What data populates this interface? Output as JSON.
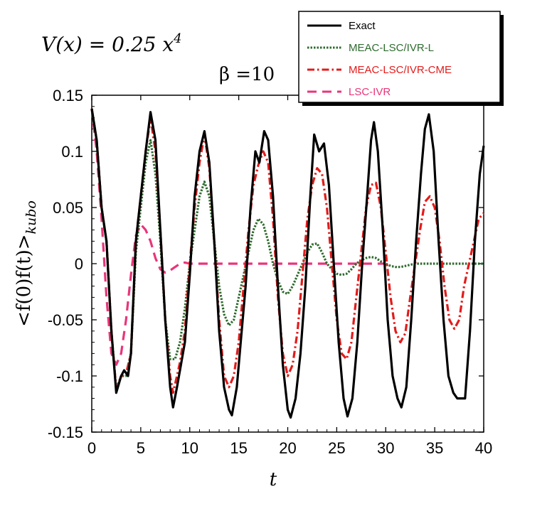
{
  "chart_data": {
    "type": "line",
    "potential_label": "V(x) = 0.25 x",
    "potential_exponent": "4",
    "beta_label": "β =10",
    "xlabel": "t",
    "ylabel_main": "<f(0)f(t)>",
    "ylabel_sub": "kubo",
    "xlim": [
      0,
      40
    ],
    "ylim": [
      -0.15,
      0.15
    ],
    "xticks": [
      "0",
      "5",
      "10",
      "15",
      "20",
      "25",
      "30",
      "35",
      "40"
    ],
    "yticks": [
      "0.15",
      "0.1",
      "0.05",
      "0",
      "-0.05",
      "-0.1",
      "-0.15"
    ],
    "legend_position": "top-right",
    "series": [
      {
        "name": "Exact",
        "color": "#000000",
        "style": "solid",
        "points": [
          [
            0,
            0.138
          ],
          [
            0.5,
            0.11
          ],
          [
            1,
            0.05
          ],
          [
            1.5,
            0.02
          ],
          [
            2,
            -0.06
          ],
          [
            2.5,
            -0.115
          ],
          [
            3,
            -0.1
          ],
          [
            3.3,
            -0.095
          ],
          [
            3.7,
            -0.1
          ],
          [
            4,
            -0.08
          ],
          [
            4.5,
            0.02
          ],
          [
            5,
            0.06
          ],
          [
            5.5,
            0.1
          ],
          [
            6,
            0.135
          ],
          [
            6.5,
            0.11
          ],
          [
            7,
            0.03
          ],
          [
            7.5,
            -0.05
          ],
          [
            8,
            -0.11
          ],
          [
            8.3,
            -0.128
          ],
          [
            8.7,
            -0.11
          ],
          [
            9,
            -0.095
          ],
          [
            9.5,
            -0.07
          ],
          [
            10,
            -0.01
          ],
          [
            10.5,
            0.06
          ],
          [
            11,
            0.1
          ],
          [
            11.5,
            0.118
          ],
          [
            12,
            0.09
          ],
          [
            12.5,
            0.02
          ],
          [
            13,
            -0.06
          ],
          [
            13.5,
            -0.11
          ],
          [
            14,
            -0.13
          ],
          [
            14.3,
            -0.135
          ],
          [
            14.8,
            -0.11
          ],
          [
            15.2,
            -0.07
          ],
          [
            15.7,
            -0.02
          ],
          [
            16.2,
            0.05
          ],
          [
            16.7,
            0.1
          ],
          [
            17.1,
            0.09
          ],
          [
            17.6,
            0.118
          ],
          [
            18,
            0.11
          ],
          [
            18.5,
            0.06
          ],
          [
            19,
            -0.02
          ],
          [
            19.5,
            -0.09
          ],
          [
            20,
            -0.13
          ],
          [
            20.3,
            -0.137
          ],
          [
            20.8,
            -0.12
          ],
          [
            21.3,
            -0.08
          ],
          [
            21.8,
            -0.02
          ],
          [
            22.3,
            0.06
          ],
          [
            22.7,
            0.115
          ],
          [
            23.2,
            0.1
          ],
          [
            23.7,
            0.107
          ],
          [
            24.2,
            0.07
          ],
          [
            24.7,
            0.0
          ],
          [
            25.2,
            -0.07
          ],
          [
            25.7,
            -0.12
          ],
          [
            26.1,
            -0.136
          ],
          [
            26.6,
            -0.12
          ],
          [
            27.1,
            -0.07
          ],
          [
            27.6,
            0.0
          ],
          [
            28.1,
            0.06
          ],
          [
            28.5,
            0.11
          ],
          [
            28.8,
            0.126
          ],
          [
            29.2,
            0.1
          ],
          [
            29.7,
            0.03
          ],
          [
            30.2,
            -0.05
          ],
          [
            30.7,
            -0.1
          ],
          [
            31.2,
            -0.12
          ],
          [
            31.6,
            -0.128
          ],
          [
            32.1,
            -0.11
          ],
          [
            32.6,
            -0.05
          ],
          [
            33.1,
            0.02
          ],
          [
            33.6,
            0.08
          ],
          [
            34.0,
            0.12
          ],
          [
            34.4,
            0.133
          ],
          [
            34.9,
            0.1
          ],
          [
            35.4,
            0.02
          ],
          [
            35.9,
            -0.05
          ],
          [
            36.4,
            -0.1
          ],
          [
            36.9,
            -0.115
          ],
          [
            37.3,
            -0.12
          ],
          [
            37.8,
            -0.12
          ],
          [
            38.1,
            -0.12
          ],
          [
            38.6,
            -0.06
          ],
          [
            39.1,
            0.02
          ],
          [
            39.6,
            0.08
          ],
          [
            40,
            0.105
          ]
        ]
      },
      {
        "name": "MEAC-LSC/IVR-L",
        "color": "#2e6b2e",
        "style": "dotted",
        "points": [
          [
            0,
            0.138
          ],
          [
            0.5,
            0.11
          ],
          [
            1,
            0.05
          ],
          [
            1.5,
            0.02
          ],
          [
            2,
            -0.06
          ],
          [
            2.5,
            -0.112
          ],
          [
            3,
            -0.1
          ],
          [
            3.5,
            -0.1
          ],
          [
            4,
            -0.08
          ],
          [
            4.5,
            0.01
          ],
          [
            5,
            0.05
          ],
          [
            5.5,
            0.09
          ],
          [
            6,
            0.11
          ],
          [
            6.5,
            0.08
          ],
          [
            7,
            0.02
          ],
          [
            7.5,
            -0.05
          ],
          [
            8,
            -0.085
          ],
          [
            8.5,
            -0.085
          ],
          [
            9,
            -0.07
          ],
          [
            9.5,
            -0.04
          ],
          [
            10,
            0.0
          ],
          [
            10.5,
            0.03
          ],
          [
            11,
            0.06
          ],
          [
            11.5,
            0.073
          ],
          [
            12,
            0.06
          ],
          [
            12.5,
            0.02
          ],
          [
            13,
            -0.02
          ],
          [
            13.5,
            -0.045
          ],
          [
            14,
            -0.055
          ],
          [
            14.5,
            -0.05
          ],
          [
            15,
            -0.03
          ],
          [
            15.5,
            -0.01
          ],
          [
            16,
            0.01
          ],
          [
            16.5,
            0.03
          ],
          [
            17,
            0.04
          ],
          [
            17.5,
            0.035
          ],
          [
            18,
            0.02
          ],
          [
            18.5,
            0.0
          ],
          [
            19,
            -0.015
          ],
          [
            19.5,
            -0.025
          ],
          [
            20,
            -0.027
          ],
          [
            20.5,
            -0.02
          ],
          [
            21,
            -0.01
          ],
          [
            21.5,
            0.0
          ],
          [
            22,
            0.01
          ],
          [
            22.5,
            0.017
          ],
          [
            23,
            0.018
          ],
          [
            23.5,
            0.01
          ],
          [
            24,
            0.0
          ],
          [
            24.5,
            -0.005
          ],
          [
            25,
            -0.009
          ],
          [
            25.5,
            -0.01
          ],
          [
            26,
            -0.009
          ],
          [
            26.5,
            -0.005
          ],
          [
            27,
            0.0
          ],
          [
            27.5,
            0.003
          ],
          [
            28,
            0.005
          ],
          [
            28.5,
            0.006
          ],
          [
            29,
            0.005
          ],
          [
            29.5,
            0.002
          ],
          [
            30,
            0.0
          ],
          [
            30.5,
            -0.002
          ],
          [
            31,
            -0.003
          ],
          [
            31.5,
            -0.003
          ],
          [
            32,
            -0.002
          ],
          [
            33,
            0.0
          ],
          [
            34,
            0.0
          ],
          [
            35,
            0.0
          ],
          [
            36,
            0.0
          ],
          [
            37,
            0.0
          ],
          [
            38,
            0.0
          ],
          [
            39,
            0.0
          ],
          [
            40,
            0.0
          ]
        ]
      },
      {
        "name": "MEAC-LSC/IVR-CME",
        "color": "#e31b1b",
        "style": "dashdot",
        "points": [
          [
            0,
            0.138
          ],
          [
            0.5,
            0.11
          ],
          [
            1,
            0.05
          ],
          [
            1.5,
            0.02
          ],
          [
            2,
            -0.06
          ],
          [
            2.5,
            -0.112
          ],
          [
            3,
            -0.1
          ],
          [
            3.5,
            -0.098
          ],
          [
            4,
            -0.08
          ],
          [
            4.5,
            0.02
          ],
          [
            5,
            0.06
          ],
          [
            5.5,
            0.1
          ],
          [
            6,
            0.13
          ],
          [
            6.5,
            0.1
          ],
          [
            7,
            0.03
          ],
          [
            7.5,
            -0.05
          ],
          [
            8,
            -0.1
          ],
          [
            8.3,
            -0.115
          ],
          [
            8.7,
            -0.1
          ],
          [
            9,
            -0.088
          ],
          [
            9.5,
            -0.06
          ],
          [
            10,
            0.0
          ],
          [
            10.5,
            0.05
          ],
          [
            11,
            0.09
          ],
          [
            11.5,
            0.115
          ],
          [
            12,
            0.085
          ],
          [
            12.5,
            0.02
          ],
          [
            13,
            -0.05
          ],
          [
            13.5,
            -0.1
          ],
          [
            14,
            -0.11
          ],
          [
            14.5,
            -0.1
          ],
          [
            15,
            -0.07
          ],
          [
            15.5,
            -0.02
          ],
          [
            16,
            0.03
          ],
          [
            16.5,
            0.07
          ],
          [
            17,
            0.088
          ],
          [
            17.5,
            0.1
          ],
          [
            18,
            0.09
          ],
          [
            18.5,
            0.04
          ],
          [
            19,
            -0.03
          ],
          [
            19.5,
            -0.08
          ],
          [
            20,
            -0.1
          ],
          [
            20.5,
            -0.09
          ],
          [
            21,
            -0.06
          ],
          [
            21.5,
            -0.01
          ],
          [
            22,
            0.04
          ],
          [
            22.5,
            0.07
          ],
          [
            23,
            0.085
          ],
          [
            23.5,
            0.08
          ],
          [
            24,
            0.05
          ],
          [
            24.5,
            0.0
          ],
          [
            25,
            -0.05
          ],
          [
            25.5,
            -0.08
          ],
          [
            26,
            -0.085
          ],
          [
            26.5,
            -0.07
          ],
          [
            27,
            -0.03
          ],
          [
            27.5,
            0.01
          ],
          [
            28,
            0.05
          ],
          [
            28.5,
            0.07
          ],
          [
            29,
            0.072
          ],
          [
            29.5,
            0.05
          ],
          [
            30,
            0.01
          ],
          [
            30.5,
            -0.03
          ],
          [
            31,
            -0.06
          ],
          [
            31.5,
            -0.07
          ],
          [
            32,
            -0.062
          ],
          [
            32.5,
            -0.03
          ],
          [
            33,
            0.0
          ],
          [
            33.5,
            0.03
          ],
          [
            34,
            0.055
          ],
          [
            34.5,
            0.06
          ],
          [
            35,
            0.05
          ],
          [
            35.5,
            0.02
          ],
          [
            36,
            -0.02
          ],
          [
            36.5,
            -0.05
          ],
          [
            37,
            -0.058
          ],
          [
            37.5,
            -0.05
          ],
          [
            38,
            -0.02
          ],
          [
            38.5,
            0.0
          ],
          [
            39,
            0.02
          ],
          [
            39.5,
            0.04
          ],
          [
            40,
            0.045
          ]
        ]
      },
      {
        "name": "LSC-IVR",
        "color": "#e8357a",
        "style": "dashed",
        "points": [
          [
            0,
            0.138
          ],
          [
            0.5,
            0.1
          ],
          [
            1,
            0.04
          ],
          [
            1.5,
            -0.03
          ],
          [
            2,
            -0.08
          ],
          [
            2.5,
            -0.09
          ],
          [
            3,
            -0.08
          ],
          [
            3.5,
            -0.05
          ],
          [
            4,
            -0.01
          ],
          [
            4.5,
            0.025
          ],
          [
            5,
            0.035
          ],
          [
            5.5,
            0.03
          ],
          [
            6,
            0.02
          ],
          [
            6.5,
            0.005
          ],
          [
            7,
            -0.005
          ],
          [
            7.5,
            -0.008
          ],
          [
            8,
            -0.006
          ],
          [
            8.5,
            -0.003
          ],
          [
            9,
            0.0
          ],
          [
            9.5,
            0.001
          ],
          [
            10,
            0.0
          ],
          [
            11,
            0.0
          ],
          [
            12,
            0.0
          ],
          [
            14,
            0.0
          ],
          [
            16,
            0.0
          ],
          [
            18,
            0.0
          ],
          [
            20,
            0.0
          ],
          [
            22,
            0.0
          ],
          [
            24,
            0.0
          ],
          [
            26,
            0.0
          ],
          [
            28,
            0.0
          ],
          [
            30,
            0.0
          ]
        ]
      }
    ]
  }
}
